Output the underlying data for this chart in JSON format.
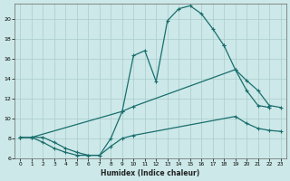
{
  "xlabel": "Humidex (Indice chaleur)",
  "bg_color": "#cce8e8",
  "grid_color": "#aacccc",
  "line_color": "#1a6e6e",
  "xlim": [
    -0.5,
    23.5
  ],
  "ylim": [
    6,
    21.5
  ],
  "yticks": [
    6,
    8,
    10,
    12,
    14,
    16,
    18,
    20
  ],
  "xticks": [
    0,
    1,
    2,
    3,
    4,
    5,
    6,
    7,
    8,
    9,
    10,
    11,
    12,
    13,
    14,
    15,
    16,
    17,
    18,
    19,
    20,
    21,
    22,
    23
  ],
  "series": [
    {
      "x": [
        0,
        1,
        2,
        3,
        4,
        5,
        6,
        7,
        8,
        9,
        10,
        11,
        12,
        13,
        14,
        15,
        16,
        17,
        18
      ],
      "y": [
        8.1,
        8.1,
        8.1,
        7.6,
        7.0,
        6.6,
        6.3,
        6.3,
        8.0,
        10.7,
        16.3,
        16.8,
        13.7,
        19.8,
        21.0,
        21.3,
        20.5,
        19.0,
        17.3
      ]
    },
    {
      "x": [
        18,
        19,
        20,
        21,
        22
      ],
      "y": [
        17.3,
        14.9,
        12.8,
        11.3,
        11.1
      ]
    },
    {
      "x": [
        0,
        1,
        9,
        10,
        19,
        20,
        21,
        22,
        23
      ],
      "y": [
        8.1,
        8.1,
        10.7,
        11.2,
        14.9,
        13.8,
        12.8,
        11.3,
        11.1
      ]
    },
    {
      "x": [
        0,
        1,
        2,
        3,
        4,
        5,
        6,
        7,
        8,
        9,
        10,
        19,
        20,
        21,
        22,
        23
      ],
      "y": [
        8.1,
        8.1,
        7.6,
        7.0,
        6.6,
        6.3,
        6.3,
        6.3,
        7.2,
        8.0,
        8.3,
        10.2,
        9.5,
        9.0,
        8.8,
        8.7
      ]
    }
  ]
}
